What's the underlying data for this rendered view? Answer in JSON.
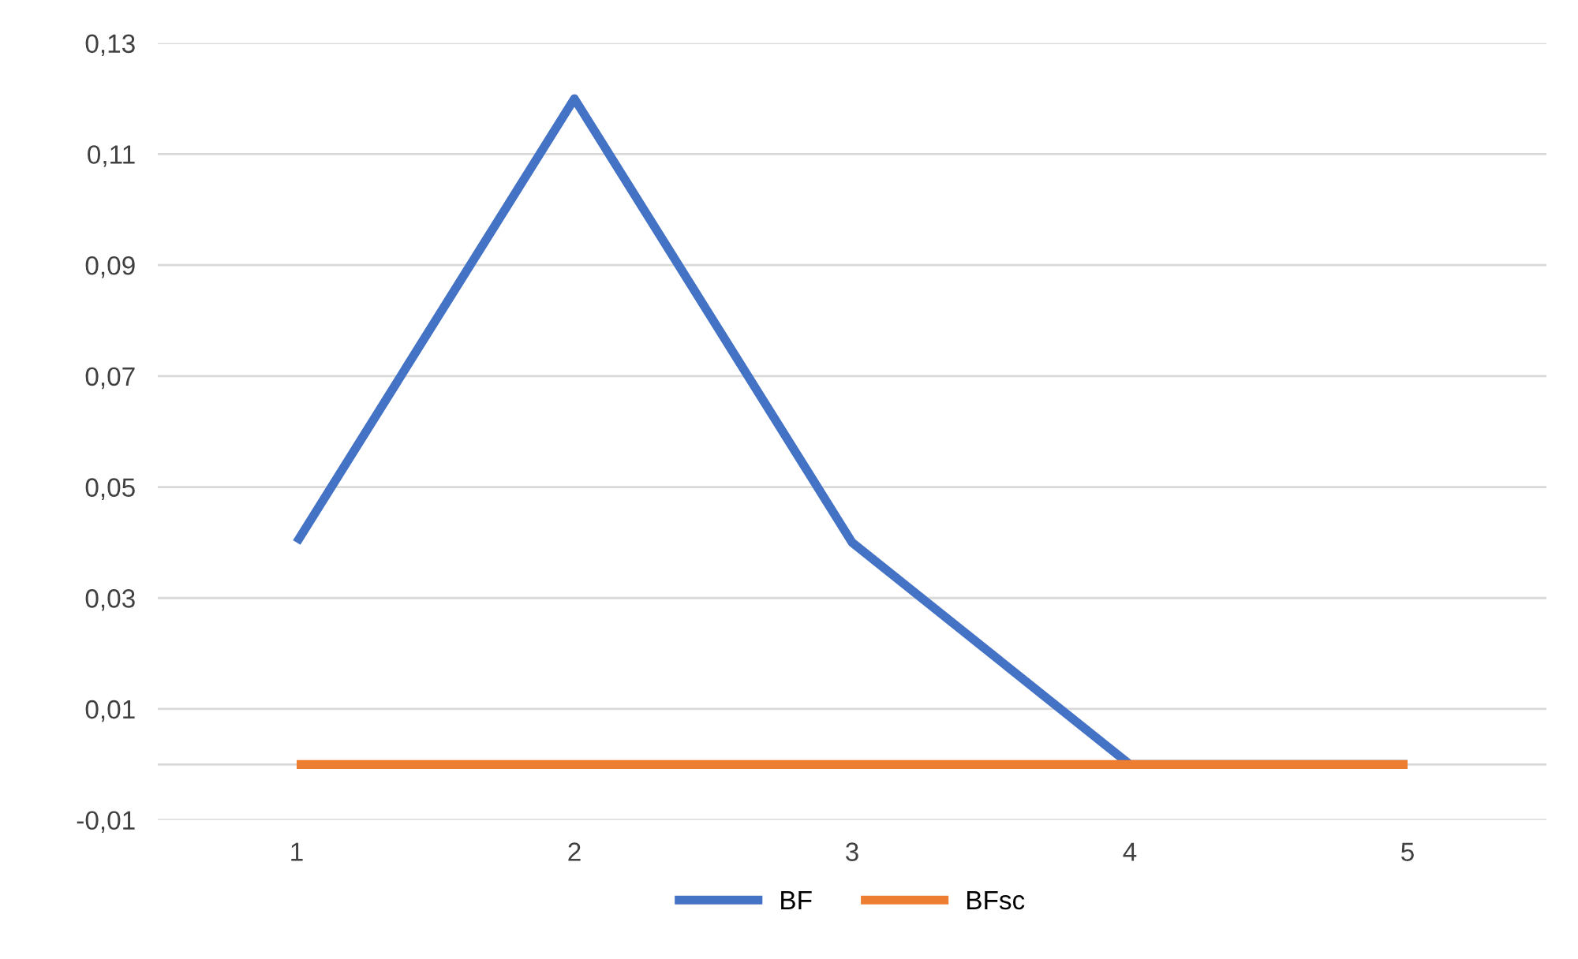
{
  "chart_data": {
    "type": "line",
    "categories": [
      "1",
      "2",
      "3",
      "4",
      "5"
    ],
    "series": [
      {
        "name": "BF",
        "color": "#4472c4",
        "values": [
          0.04,
          0.12,
          0.04,
          0,
          0
        ]
      },
      {
        "name": "BFsc",
        "color": "#ed7d31",
        "values": [
          0,
          0,
          0,
          0,
          0
        ]
      }
    ],
    "ylim": [
      -0.01,
      0.13
    ],
    "yticks": [
      {
        "value": -0.01,
        "label": "-0,01"
      },
      {
        "value": 0.01,
        "label": "0,01"
      },
      {
        "value": 0.03,
        "label": "0,03"
      },
      {
        "value": 0.05,
        "label": "0,05"
      },
      {
        "value": 0.07,
        "label": "0,07"
      },
      {
        "value": 0.09,
        "label": "0,09"
      },
      {
        "value": 0.11,
        "label": "0,11"
      },
      {
        "value": 0.13,
        "label": "0,13"
      }
    ],
    "ref_lines": [
      {
        "axis": "y",
        "value": 0,
        "color": "#d9d9d9"
      }
    ],
    "grid": "y",
    "legend": "bottom",
    "marker": "none",
    "line_style": "solid"
  }
}
